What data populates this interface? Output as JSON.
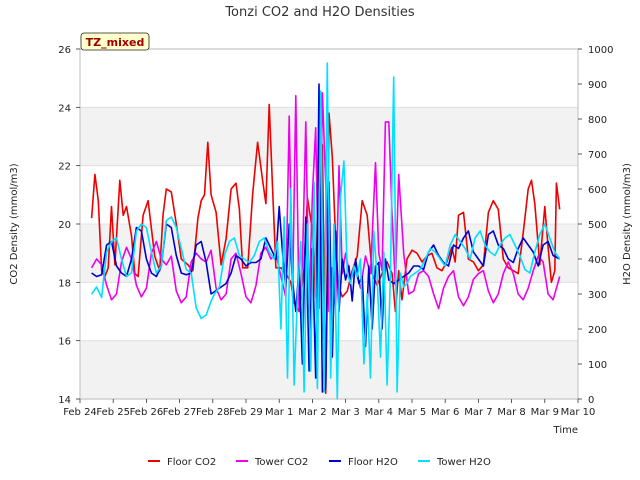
{
  "chart_data": {
    "type": "line",
    "title": "Tonzi CO2 and H2O Densities",
    "xlabel": "Time",
    "ylabel_left": "CO2 Density (mmol/m3)",
    "ylabel_right": "H2O Density (mmol/m3)",
    "badge": "TZ_mixed",
    "x_ticks": [
      "Feb 24",
      "Feb 25",
      "Feb 26",
      "Feb 27",
      "Feb 28",
      "Feb 29",
      "Mar 1",
      "Mar 2",
      "Mar 3",
      "Mar 4",
      "Mar 5",
      "Mar 6",
      "Mar 7",
      "Mar 8",
      "Mar 9",
      "Mar 10"
    ],
    "xlim": [
      0,
      15
    ],
    "ylim_left": [
      14,
      26
    ],
    "y_ticks_left": [
      14,
      16,
      18,
      20,
      22,
      24,
      26
    ],
    "ylim_right": [
      0,
      1000
    ],
    "y_ticks_right": [
      0,
      100,
      200,
      300,
      400,
      500,
      600,
      700,
      800,
      900,
      1000
    ],
    "legend": "bottom-center",
    "series": [
      {
        "name": "Floor CO2",
        "axis": "left",
        "color": "#ee0000",
        "x": [
          0.35,
          0.45,
          0.55,
          0.65,
          0.75,
          0.85,
          0.95,
          1.05,
          1.2,
          1.3,
          1.4,
          1.55,
          1.65,
          1.75,
          1.9,
          2.05,
          2.25,
          2.4,
          2.5,
          2.6,
          2.75,
          2.9,
          3.05,
          3.25,
          3.4,
          3.55,
          3.65,
          3.75,
          3.85,
          3.95,
          4.1,
          4.25,
          4.4,
          4.55,
          4.7,
          4.8,
          4.9,
          5.05,
          5.2,
          5.35,
          5.5,
          5.6,
          5.7,
          5.8,
          5.9,
          6.05,
          6.2,
          6.35,
          6.45,
          6.6,
          6.75,
          6.85,
          7.0,
          7.1,
          7.2,
          7.3,
          7.4,
          7.5,
          7.6,
          7.75,
          7.9,
          8.05,
          8.2,
          8.35,
          8.5,
          8.65,
          8.8,
          8.95,
          9.1,
          9.25,
          9.4,
          9.5,
          9.6,
          9.7,
          9.85,
          10.0,
          10.15,
          10.3,
          10.45,
          10.6,
          10.75,
          10.9,
          11.05,
          11.2,
          11.3,
          11.4,
          11.55,
          11.7,
          11.85,
          12.0,
          12.15,
          12.3,
          12.45,
          12.6,
          12.75,
          12.9,
          13.05,
          13.2,
          13.35,
          13.5,
          13.6,
          13.7,
          13.85,
          14.0,
          14.1,
          14.2,
          14.3,
          14.35,
          14.45
        ],
        "y": [
          20.2,
          21.7,
          20.8,
          18.4,
          18.2,
          18.5,
          20.6,
          18.6,
          21.5,
          20.3,
          20.6,
          19.6,
          18.3,
          18.2,
          20.3,
          20.8,
          18.9,
          18.4,
          20.3,
          21.2,
          21.1,
          20.0,
          18.8,
          18.6,
          18.4,
          20.2,
          20.8,
          21.0,
          22.8,
          21.0,
          20.4,
          18.6,
          19.5,
          21.2,
          21.4,
          20.5,
          18.5,
          18.5,
          21.0,
          22.8,
          21.5,
          20.7,
          24.1,
          21.2,
          18.5,
          18.5,
          18.3,
          18.0,
          17.3,
          17.0,
          18.5,
          20.9,
          19.8,
          17.5,
          23.0,
          22.7,
          14.2,
          23.8,
          22.3,
          18.0,
          17.5,
          17.7,
          18.4,
          18.9,
          20.8,
          20.3,
          18.3,
          17.9,
          18.3,
          18.7,
          18.3,
          17.0,
          18.4,
          17.4,
          18.8,
          19.1,
          19.0,
          18.7,
          18.9,
          19.0,
          18.5,
          18.4,
          18.7,
          19.2,
          18.7,
          20.3,
          20.4,
          18.8,
          18.7,
          18.4,
          18.6,
          20.4,
          20.8,
          20.5,
          18.8,
          18.5,
          18.4,
          18.3,
          19.7,
          21.2,
          21.5,
          20.7,
          18.6,
          20.6,
          19.2,
          18.0,
          18.4,
          21.4,
          20.5
        ]
      },
      {
        "name": "Tower CO2",
        "axis": "left",
        "color": "#ee00ee",
        "x": [
          0.35,
          0.5,
          0.65,
          0.8,
          0.95,
          1.1,
          1.25,
          1.4,
          1.55,
          1.7,
          1.85,
          2.0,
          2.15,
          2.3,
          2.45,
          2.6,
          2.75,
          2.9,
          3.05,
          3.2,
          3.35,
          3.5,
          3.65,
          3.8,
          3.95,
          4.1,
          4.25,
          4.4,
          4.55,
          4.7,
          4.85,
          5.0,
          5.15,
          5.3,
          5.45,
          5.6,
          5.75,
          5.9,
          6.05,
          6.2,
          6.3,
          6.4,
          6.5,
          6.6,
          6.7,
          6.8,
          6.9,
          7.0,
          7.1,
          7.2,
          7.3,
          7.4,
          7.5,
          7.6,
          7.7,
          7.8,
          7.9,
          8.0,
          8.15,
          8.3,
          8.45,
          8.6,
          8.75,
          8.9,
          9.0,
          9.1,
          9.2,
          9.3,
          9.4,
          9.5,
          9.6,
          9.75,
          9.9,
          10.05,
          10.2,
          10.35,
          10.5,
          10.65,
          10.8,
          10.95,
          11.1,
          11.25,
          11.4,
          11.55,
          11.7,
          11.85,
          12.0,
          12.15,
          12.3,
          12.45,
          12.6,
          12.75,
          12.9,
          13.05,
          13.2,
          13.35,
          13.5,
          13.65,
          13.8,
          13.95,
          14.1,
          14.25,
          14.45
        ],
        "y": [
          18.5,
          18.8,
          18.6,
          17.9,
          17.4,
          17.6,
          18.7,
          19.2,
          18.8,
          17.9,
          17.5,
          17.8,
          19.0,
          19.4,
          18.8,
          18.6,
          18.9,
          17.7,
          17.3,
          17.5,
          18.7,
          19.0,
          18.8,
          18.7,
          19.1,
          17.8,
          17.4,
          17.6,
          18.8,
          19.0,
          18.3,
          17.5,
          17.3,
          17.9,
          19.0,
          19.2,
          18.8,
          19.0,
          18.2,
          17.5,
          23.7,
          17.5,
          24.4,
          17.0,
          18.6,
          23.5,
          17.2,
          21.0,
          23.3,
          17.1,
          24.5,
          21.4,
          17.0,
          18.5,
          17.2,
          22.0,
          18.3,
          19.0,
          18.1,
          18.4,
          17.8,
          18.9,
          18.3,
          22.1,
          19.0,
          18.4,
          23.5,
          23.5,
          20.3,
          17.9,
          21.7,
          19.0,
          17.6,
          17.7,
          18.3,
          18.4,
          18.2,
          17.6,
          17.1,
          17.8,
          18.2,
          18.4,
          17.5,
          17.2,
          17.5,
          18.1,
          18.3,
          18.4,
          17.7,
          17.3,
          17.6,
          18.3,
          18.7,
          18.3,
          17.6,
          17.4,
          17.8,
          18.4,
          18.9,
          18.7,
          17.6,
          17.4,
          18.2
        ]
      },
      {
        "name": "Floor H2O",
        "axis": "right",
        "color": "#0000cc",
        "x": [
          0.35,
          0.5,
          0.65,
          0.8,
          0.95,
          1.1,
          1.25,
          1.4,
          1.55,
          1.7,
          1.85,
          2.0,
          2.15,
          2.3,
          2.45,
          2.6,
          2.75,
          2.9,
          3.05,
          3.2,
          3.35,
          3.5,
          3.65,
          3.8,
          3.95,
          4.1,
          4.25,
          4.4,
          4.55,
          4.7,
          4.85,
          5.0,
          5.15,
          5.3,
          5.45,
          5.6,
          5.75,
          5.9,
          6.0,
          6.1,
          6.2,
          6.3,
          6.4,
          6.5,
          6.6,
          6.7,
          6.8,
          6.9,
          7.0,
          7.1,
          7.2,
          7.3,
          7.4,
          7.5,
          7.6,
          7.7,
          7.8,
          7.9,
          8.0,
          8.1,
          8.2,
          8.3,
          8.4,
          8.5,
          8.6,
          8.7,
          8.8,
          8.9,
          9.0,
          9.1,
          9.2,
          9.3,
          9.45,
          9.6,
          9.75,
          9.9,
          10.05,
          10.2,
          10.35,
          10.5,
          10.65,
          10.8,
          10.95,
          11.1,
          11.25,
          11.4,
          11.55,
          11.7,
          11.85,
          12.0,
          12.15,
          12.3,
          12.45,
          12.6,
          12.75,
          12.9,
          13.05,
          13.2,
          13.35,
          13.5,
          13.65,
          13.8,
          13.95,
          14.1,
          14.25,
          14.45
        ],
        "y": [
          360,
          350,
          355,
          440,
          450,
          380,
          360,
          350,
          400,
          490,
          480,
          400,
          360,
          350,
          380,
          500,
          490,
          410,
          360,
          355,
          360,
          440,
          450,
          390,
          300,
          310,
          320,
          330,
          360,
          410,
          400,
          380,
          390,
          390,
          400,
          460,
          430,
          400,
          550,
          420,
          320,
          500,
          340,
          250,
          380,
          100,
          520,
          80,
          430,
          60,
          900,
          20,
          30,
          620,
          120,
          480,
          250,
          400,
          340,
          380,
          280,
          400,
          330,
          350,
          150,
          380,
          200,
          380,
          390,
          200,
          400,
          340,
          330,
          340,
          350,
          360,
          380,
          380,
          370,
          420,
          440,
          410,
          390,
          380,
          440,
          430,
          460,
          480,
          420,
          400,
          380,
          470,
          480,
          440,
          430,
          400,
          390,
          430,
          460,
          440,
          420,
          380,
          440,
          450,
          410,
          400
        ]
      },
      {
        "name": "Tower H2O",
        "axis": "right",
        "color": "#00e0ff",
        "x": [
          0.35,
          0.5,
          0.65,
          0.8,
          0.95,
          1.1,
          1.25,
          1.4,
          1.55,
          1.7,
          1.85,
          2.0,
          2.15,
          2.3,
          2.45,
          2.6,
          2.75,
          2.9,
          3.05,
          3.2,
          3.35,
          3.5,
          3.65,
          3.8,
          3.95,
          4.05,
          4.2,
          4.35,
          4.5,
          4.65,
          4.8,
          4.95,
          5.1,
          5.25,
          5.4,
          5.55,
          5.7,
          5.85,
          5.95,
          6.05,
          6.15,
          6.25,
          6.35,
          6.45,
          6.55,
          6.65,
          6.75,
          6.85,
          6.95,
          7.05,
          7.15,
          7.25,
          7.35,
          7.45,
          7.55,
          7.65,
          7.75,
          7.85,
          7.95,
          8.05,
          8.15,
          8.25,
          8.35,
          8.45,
          8.55,
          8.65,
          8.75,
          8.85,
          8.95,
          9.05,
          9.15,
          9.25,
          9.35,
          9.45,
          9.55,
          9.65,
          9.75,
          9.85,
          9.95,
          10.1,
          10.25,
          10.4,
          10.55,
          10.7,
          10.85,
          11.0,
          11.15,
          11.3,
          11.45,
          11.6,
          11.75,
          11.9,
          12.05,
          12.2,
          12.35,
          12.5,
          12.65,
          12.8,
          12.95,
          13.1,
          13.25,
          13.4,
          13.55,
          13.7,
          13.85,
          14.0,
          14.15,
          14.3,
          14.45
        ],
        "y": [
          300,
          320,
          290,
          420,
          450,
          460,
          400,
          350,
          360,
          480,
          500,
          490,
          420,
          360,
          380,
          510,
          520,
          490,
          430,
          370,
          360,
          260,
          230,
          240,
          280,
          300,
          320,
          410,
          450,
          460,
          410,
          400,
          390,
          410,
          450,
          460,
          420,
          400,
          450,
          200,
          520,
          60,
          600,
          40,
          300,
          450,
          20,
          500,
          80,
          620,
          30,
          880,
          20,
          960,
          60,
          500,
          0,
          580,
          680,
          360,
          330,
          380,
          350,
          400,
          100,
          300,
          60,
          480,
          350,
          120,
          420,
          40,
          350,
          920,
          20,
          360,
          320,
          330,
          350,
          360,
          370,
          400,
          430,
          420,
          400,
          380,
          440,
          470,
          450,
          430,
          400,
          460,
          480,
          440,
          420,
          410,
          440,
          460,
          470,
          440,
          410,
          370,
          360,
          420,
          470,
          500,
          460,
          420,
          400
        ]
      }
    ]
  }
}
